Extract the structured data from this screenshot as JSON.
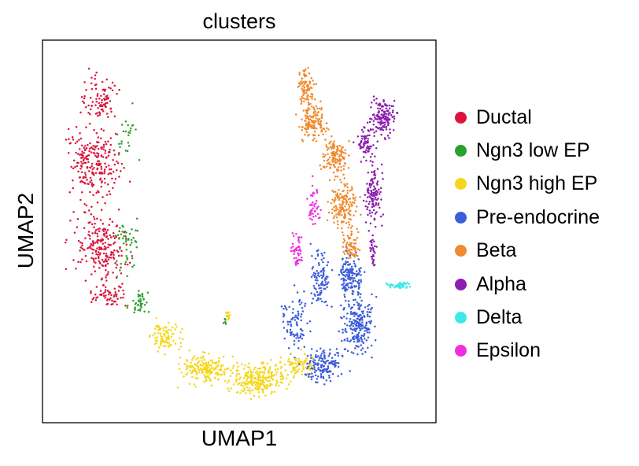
{
  "chart_data": {
    "type": "scatter",
    "title": "clusters",
    "xlabel": "UMAP1",
    "ylabel": "UMAP2",
    "xticks": [],
    "yticks": [],
    "grid": false,
    "legend_position": "right",
    "series": [
      {
        "name": "Ductal",
        "color": "#dc143c",
        "shapes": [
          {
            "cx": 1.2,
            "cy": 8.6,
            "rx": 0.7,
            "ry": 0.8,
            "n": 90
          },
          {
            "cx": 1.1,
            "cy": 6.9,
            "rx": 0.9,
            "ry": 1.3,
            "n": 230
          },
          {
            "cx": 1.25,
            "cy": 4.6,
            "rx": 0.9,
            "ry": 1.1,
            "n": 210
          },
          {
            "cx": 1.5,
            "cy": 3.2,
            "rx": 0.8,
            "ry": 0.35,
            "n": 60
          }
        ]
      },
      {
        "name": "Ngn3 low EP",
        "color": "#2ca02c",
        "shapes": [
          {
            "cx": 2.0,
            "cy": 7.6,
            "rx": 0.4,
            "ry": 1.0,
            "n": 25
          },
          {
            "cx": 2.0,
            "cy": 4.6,
            "rx": 0.45,
            "ry": 1.0,
            "n": 45
          },
          {
            "cx": 2.35,
            "cy": 3.0,
            "rx": 0.35,
            "ry": 0.4,
            "n": 40
          },
          {
            "cx": 4.6,
            "cy": 2.5,
            "rx": 0.05,
            "ry": 0.2,
            "n": 6
          }
        ]
      },
      {
        "name": "Ngn3 high EP",
        "color": "#f4d71c",
        "shapes": [
          {
            "cx": 3.0,
            "cy": 2.1,
            "rx": 0.5,
            "ry": 0.45,
            "n": 90
          },
          {
            "cx": 4.1,
            "cy": 1.2,
            "rx": 0.8,
            "ry": 0.45,
            "n": 180
          },
          {
            "cx": 5.5,
            "cy": 0.9,
            "rx": 0.9,
            "ry": 0.55,
            "n": 250
          },
          {
            "cx": 6.6,
            "cy": 1.3,
            "rx": 0.6,
            "ry": 0.4,
            "n": 80
          },
          {
            "cx": 4.7,
            "cy": 2.7,
            "rx": 0.1,
            "ry": 0.2,
            "n": 15
          }
        ]
      },
      {
        "name": "Pre-endocrine",
        "color": "#3c5ddb",
        "shapes": [
          {
            "cx": 6.5,
            "cy": 2.4,
            "rx": 0.45,
            "ry": 1.0,
            "n": 90
          },
          {
            "cx": 7.3,
            "cy": 1.3,
            "rx": 0.6,
            "ry": 0.5,
            "n": 150
          },
          {
            "cx": 8.2,
            "cy": 2.4,
            "rx": 0.55,
            "ry": 1.0,
            "n": 220
          },
          {
            "cx": 8.0,
            "cy": 3.8,
            "rx": 0.4,
            "ry": 0.8,
            "n": 150
          },
          {
            "cx": 7.2,
            "cy": 3.7,
            "rx": 0.35,
            "ry": 1.0,
            "n": 100
          }
        ]
      },
      {
        "name": "Beta",
        "color": "#f08a2e",
        "shapes": [
          {
            "cx": 6.8,
            "cy": 8.9,
            "rx": 0.25,
            "ry": 0.7,
            "n": 90
          },
          {
            "cx": 7.0,
            "cy": 8.0,
            "rx": 0.45,
            "ry": 0.6,
            "n": 140
          },
          {
            "cx": 7.6,
            "cy": 7.0,
            "rx": 0.45,
            "ry": 0.55,
            "n": 130
          },
          {
            "cx": 7.8,
            "cy": 5.7,
            "rx": 0.45,
            "ry": 0.8,
            "n": 160
          },
          {
            "cx": 8.0,
            "cy": 4.6,
            "rx": 0.3,
            "ry": 0.5,
            "n": 70
          }
        ]
      },
      {
        "name": "Alpha",
        "color": "#8b1fb0",
        "shapes": [
          {
            "cx": 8.9,
            "cy": 8.1,
            "rx": 0.4,
            "ry": 0.6,
            "n": 150
          },
          {
            "cx": 8.4,
            "cy": 7.4,
            "rx": 0.35,
            "ry": 0.5,
            "n": 70
          },
          {
            "cx": 8.6,
            "cy": 6.0,
            "rx": 0.3,
            "ry": 1.0,
            "n": 120
          },
          {
            "cx": 8.6,
            "cy": 4.4,
            "rx": 0.12,
            "ry": 0.5,
            "n": 30
          }
        ]
      },
      {
        "name": "Delta",
        "color": "#3fe8e8",
        "shapes": [
          {
            "cx": 9.3,
            "cy": 3.5,
            "rx": 0.35,
            "ry": 0.12,
            "n": 55
          }
        ]
      },
      {
        "name": "Epsilon",
        "color": "#f02ee0",
        "shapes": [
          {
            "cx": 7.0,
            "cy": 5.7,
            "rx": 0.25,
            "ry": 0.7,
            "n": 45
          },
          {
            "cx": 6.55,
            "cy": 4.5,
            "rx": 0.2,
            "ry": 0.7,
            "n": 45
          }
        ]
      }
    ],
    "xlim": [
      0,
      10
    ],
    "ylim": [
      0,
      10
    ],
    "total_points_approx": 3700
  }
}
